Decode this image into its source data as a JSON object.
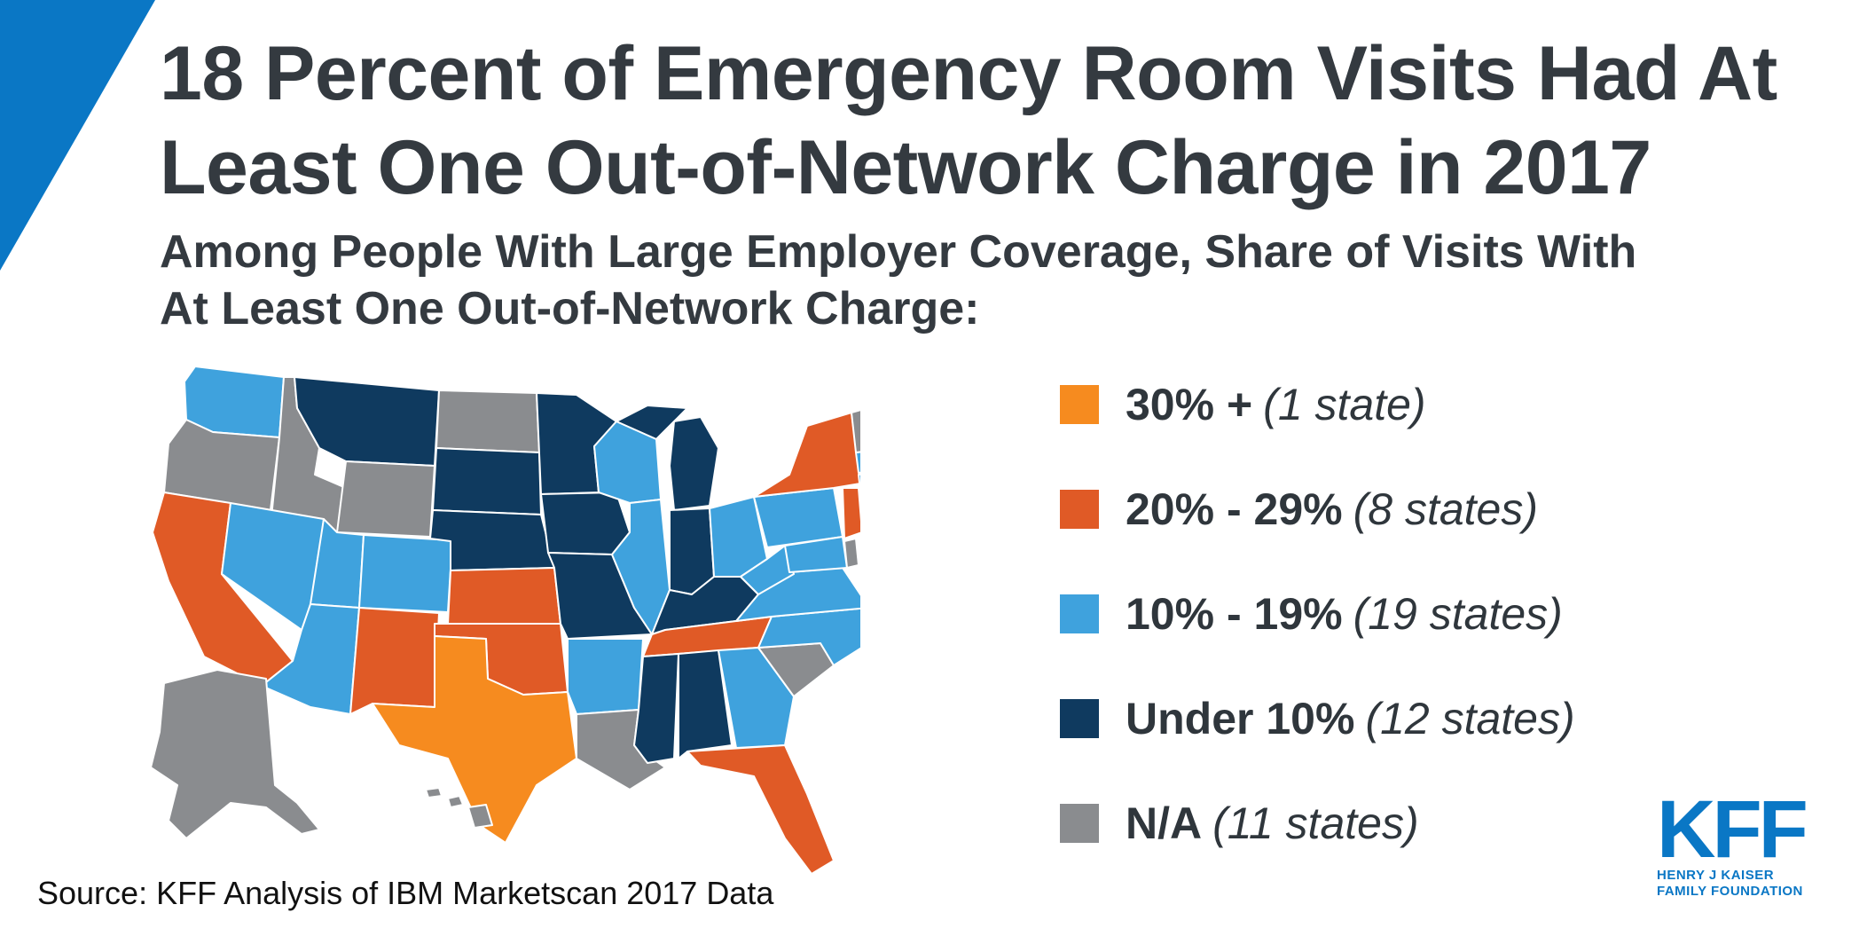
{
  "header": {
    "title_line1": "18 Percent of Emergency Room Visits Had At",
    "title_line2": "Least One Out-of-Network Charge in 2017",
    "subtitle_line1": "Among People With Large Employer Coverage, Share of Visits With",
    "subtitle_line2": "At Least One Out-of-Network Charge:"
  },
  "legend": [
    {
      "label": "30% +",
      "note": "(1 state)",
      "color": "#f68b1f"
    },
    {
      "label": "20% - 29%",
      "note": "(8 states)",
      "color": "#e05a26"
    },
    {
      "label": "10% - 19%",
      "note": "(19 states)",
      "color": "#3fa2dd"
    },
    {
      "label": "Under 10%",
      "note": "(12 states)",
      "color": "#0f3a5f"
    },
    {
      "label": "N/A",
      "note": "(11 states)",
      "color": "#8a8c8f"
    }
  ],
  "source": "Source: KFF Analysis of IBM Marketscan 2017 Data",
  "logo": {
    "mark": "KFF",
    "line1": "HENRY J KAISER",
    "line2": "FAMILY FOUNDATION"
  },
  "colors": {
    "accent": "#0a77c5",
    "text": "#343a40"
  }
}
